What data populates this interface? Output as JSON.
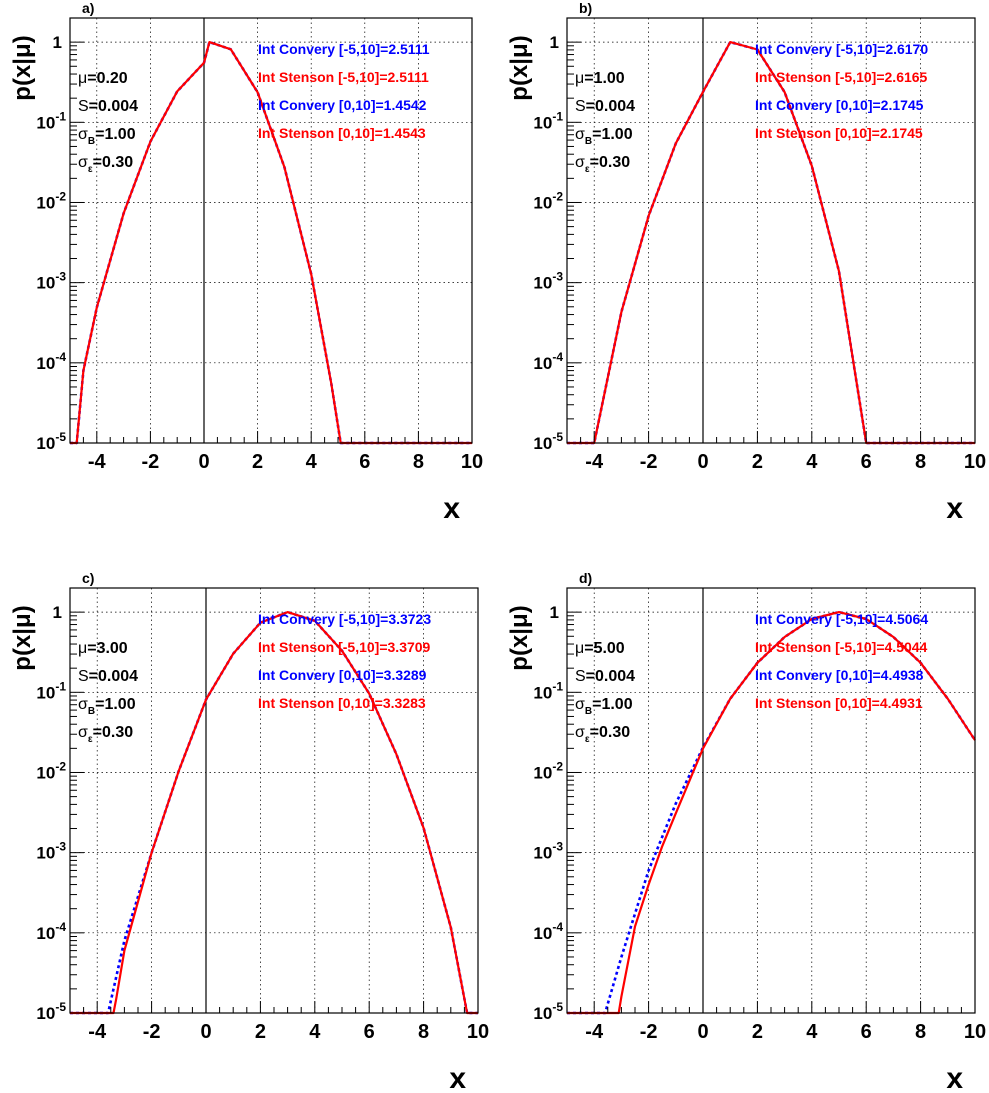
{
  "figure": {
    "xlabel": "x",
    "ylabel": "p(x|μ)"
  },
  "colors": {
    "convery": "#0000ff",
    "stenson": "#ff0000",
    "grid": "#000000",
    "frame": "#000000"
  },
  "chart_data": [
    {
      "type": "line",
      "panel_label": "a)",
      "xlabel": "x",
      "ylabel": "p(x|μ)",
      "xlim": [
        -5,
        10
      ],
      "ylim": [
        1e-05,
        2
      ],
      "y_scale": "log",
      "grid": true,
      "x_ticks": [
        "-4",
        "-2",
        "0",
        "2",
        "4",
        "6",
        "8",
        "10"
      ],
      "y_ticks": [
        "1",
        "10^-1",
        "10^-2",
        "10^-3",
        "10^-4",
        "10^-5"
      ],
      "params": [
        {
          "sym": "μ",
          "sub": "",
          "value": "0.20"
        },
        {
          "sym": "S",
          "sub": "",
          "value": "0.004"
        },
        {
          "sym": "σ",
          "sub": "B",
          "value": "1.00"
        },
        {
          "sym": "σ",
          "sub": "ε",
          "value": "0.30"
        }
      ],
      "annotations": [
        {
          "text": "Int Convery [-5,10]=2.5111",
          "color": "blue"
        },
        {
          "text": "Int Stenson [-5,10]=2.5111",
          "color": "red"
        },
        {
          "text": "Int Convery [0,10]=1.4542",
          "color": "blue"
        },
        {
          "text": "Int Stenson [0,10]=1.4543",
          "color": "red"
        }
      ],
      "series": [
        {
          "style": "dotted",
          "color": "#0000ff",
          "x": [
            -5,
            -4.75,
            -4.5,
            -4,
            -3,
            -2,
            -1,
            0,
            0.2,
            1,
            2,
            3,
            4,
            4.75,
            5.1,
            6,
            10
          ],
          "y": [
            1e-05,
            1e-05,
            8e-05,
            0.00049,
            0.0073,
            0.0574,
            0.2429,
            0.5525,
            1.0,
            0.8146,
            0.2366,
            0.0276,
            0.00128,
            5.5e-05,
            1e-05,
            1e-05,
            1e-05
          ]
        },
        {
          "style": "solid",
          "color": "#ff0000",
          "x": [
            -5,
            -4.75,
            -4.5,
            -4,
            -3,
            -2,
            -1,
            0,
            0.2,
            1,
            2,
            3,
            4,
            4.75,
            5.1,
            6,
            10
          ],
          "y": [
            1e-05,
            1e-05,
            8e-05,
            0.00049,
            0.0073,
            0.0574,
            0.2429,
            0.5525,
            1.0,
            0.8146,
            0.2366,
            0.0276,
            0.00128,
            5.5e-05,
            1e-05,
            1e-05,
            1e-05
          ]
        }
      ]
    },
    {
      "type": "line",
      "panel_label": "b)",
      "xlabel": "x",
      "ylabel": "p(x|μ)",
      "xlim": [
        -5,
        10
      ],
      "ylim": [
        1e-05,
        2
      ],
      "y_scale": "log",
      "grid": true,
      "x_ticks": [
        "-4",
        "-2",
        "0",
        "2",
        "4",
        "6",
        "8",
        "10"
      ],
      "y_ticks": [
        "1",
        "10^-1",
        "10^-2",
        "10^-3",
        "10^-4",
        "10^-5"
      ],
      "params": [
        {
          "sym": "μ",
          "sub": "",
          "value": "1.00"
        },
        {
          "sym": "S",
          "sub": "",
          "value": "0.004"
        },
        {
          "sym": "σ",
          "sub": "B",
          "value": "1.00"
        },
        {
          "sym": "σ",
          "sub": "ε",
          "value": "0.30"
        }
      ],
      "annotations": [
        {
          "text": "Int Convery [-5,10]=2.6170",
          "color": "blue"
        },
        {
          "text": "Int Stenson [-5,10]=2.6165",
          "color": "red"
        },
        {
          "text": "Int Convery [0,10]=2.1745",
          "color": "blue"
        },
        {
          "text": "Int Stenson [0,10]=2.1745",
          "color": "red"
        }
      ],
      "series": [
        {
          "style": "dotted",
          "color": "#0000ff",
          "x": [
            -5,
            -4,
            -3,
            -2,
            -1,
            0,
            1,
            2,
            3,
            4,
            5,
            6,
            10
          ],
          "y": [
            1e-05,
            1e-05,
            0.00043,
            0.0068,
            0.0546,
            0.2393,
            1.0,
            0.8096,
            0.2381,
            0.0286,
            0.00138,
            1e-05,
            1e-05
          ]
        },
        {
          "style": "solid",
          "color": "#ff0000",
          "x": [
            -5,
            -4,
            -3,
            -2,
            -1,
            0,
            1,
            2,
            3,
            4,
            5,
            6,
            10
          ],
          "y": [
            1e-05,
            1e-05,
            0.00043,
            0.0068,
            0.0546,
            0.2393,
            1.0,
            0.8096,
            0.2381,
            0.0286,
            0.00138,
            1e-05,
            1e-05
          ]
        }
      ]
    },
    {
      "type": "line",
      "panel_label": "c)",
      "xlabel": "x",
      "ylabel": "p(x|μ)",
      "xlim": [
        -5,
        10
      ],
      "ylim": [
        1e-05,
        2
      ],
      "y_scale": "log",
      "grid": true,
      "x_ticks": [
        "-4",
        "-2",
        "0",
        "2",
        "4",
        "6",
        "8",
        "10"
      ],
      "y_ticks": [
        "1",
        "10^-1",
        "10^-2",
        "10^-3",
        "10^-4",
        "10^-5"
      ],
      "params": [
        {
          "sym": "μ",
          "sub": "",
          "value": "3.00"
        },
        {
          "sym": "S",
          "sub": "",
          "value": "0.004"
        },
        {
          "sym": "σ",
          "sub": "B",
          "value": "1.00"
        },
        {
          "sym": "σ",
          "sub": "ε",
          "value": "0.30"
        }
      ],
      "annotations": [
        {
          "text": "Int Convery [-5,10]=3.3723",
          "color": "blue"
        },
        {
          "text": "Int Stenson [-5,10]=3.3709",
          "color": "red"
        },
        {
          "text": "Int Convery [0,10]=3.3289",
          "color": "blue"
        },
        {
          "text": "Int Stenson [0,10]=3.3283",
          "color": "red"
        }
      ],
      "series": [
        {
          "style": "dotted",
          "color": "#0000ff",
          "x": [
            -5,
            -3.6,
            -3,
            -2,
            -1,
            0,
            1,
            2,
            3,
            4,
            5,
            6,
            7,
            8,
            9,
            9.6,
            10
          ],
          "y": [
            1e-05,
            1e-05,
            8e-05,
            0.001,
            0.0105,
            0.081,
            0.303,
            0.739,
            1.0,
            0.779,
            0.33,
            0.0964,
            0.0169,
            0.00203,
            0.000117,
            1e-05,
            1e-05
          ]
        },
        {
          "style": "solid",
          "color": "#ff0000",
          "x": [
            -5,
            -3.4,
            -3.3,
            -3,
            -2,
            -1,
            0,
            1,
            2,
            3,
            4,
            5,
            6,
            7,
            8,
            9,
            9.6,
            10
          ],
          "y": [
            1e-05,
            1e-05,
            1.5e-05,
            6e-05,
            0.001,
            0.0105,
            0.081,
            0.303,
            0.739,
            1.0,
            0.779,
            0.33,
            0.0964,
            0.0169,
            0.00203,
            0.000117,
            1e-05,
            1e-05
          ]
        }
      ]
    },
    {
      "type": "line",
      "panel_label": "d)",
      "xlabel": "x",
      "ylabel": "p(x|μ)",
      "xlim": [
        -5,
        10
      ],
      "ylim": [
        1e-05,
        2
      ],
      "y_scale": "log",
      "grid": true,
      "x_ticks": [
        "-4",
        "-2",
        "0",
        "2",
        "4",
        "6",
        "8",
        "10"
      ],
      "y_ticks": [
        "1",
        "10^-1",
        "10^-2",
        "10^-3",
        "10^-4",
        "10^-5"
      ],
      "params": [
        {
          "sym": "μ",
          "sub": "",
          "value": "5.00"
        },
        {
          "sym": "S",
          "sub": "",
          "value": "0.004"
        },
        {
          "sym": "σ",
          "sub": "B",
          "value": "1.00"
        },
        {
          "sym": "σ",
          "sub": "ε",
          "value": "0.30"
        }
      ],
      "annotations": [
        {
          "text": "Int Convery [-5,10]=4.5064",
          "color": "blue"
        },
        {
          "text": "Int Stenson [-5,10]=4.5044",
          "color": "red"
        },
        {
          "text": "Int Convery [0,10]=4.4938",
          "color": "blue"
        },
        {
          "text": "Int Stenson [0,10]=4.4931",
          "color": "red"
        }
      ],
      "series": [
        {
          "style": "dotted",
          "color": "#0000ff",
          "x": [
            -5,
            -3.6,
            -3,
            -2,
            -1,
            0,
            1,
            2,
            3,
            4,
            5,
            6,
            7,
            8,
            9,
            10
          ],
          "y": [
            1e-05,
            1e-05,
            5e-05,
            0.0006,
            0.0041,
            0.0205,
            0.0829,
            0.2336,
            0.49,
            0.8208,
            1.0,
            0.8208,
            0.49,
            0.2336,
            0.0829,
            0.0253
          ]
        },
        {
          "style": "solid",
          "color": "#ff0000",
          "x": [
            -5,
            -3.1,
            -3.0,
            -2.5,
            -2,
            -1.5,
            -1,
            0,
            1,
            2,
            3,
            4,
            5,
            6,
            7,
            8,
            9,
            10
          ],
          "y": [
            1e-05,
            1e-05,
            1.6e-05,
            0.00012,
            0.0004,
            0.0012,
            0.0031,
            0.0199,
            0.0829,
            0.2336,
            0.49,
            0.8208,
            1.0,
            0.8208,
            0.49,
            0.2336,
            0.0829,
            0.0253
          ]
        }
      ]
    }
  ]
}
